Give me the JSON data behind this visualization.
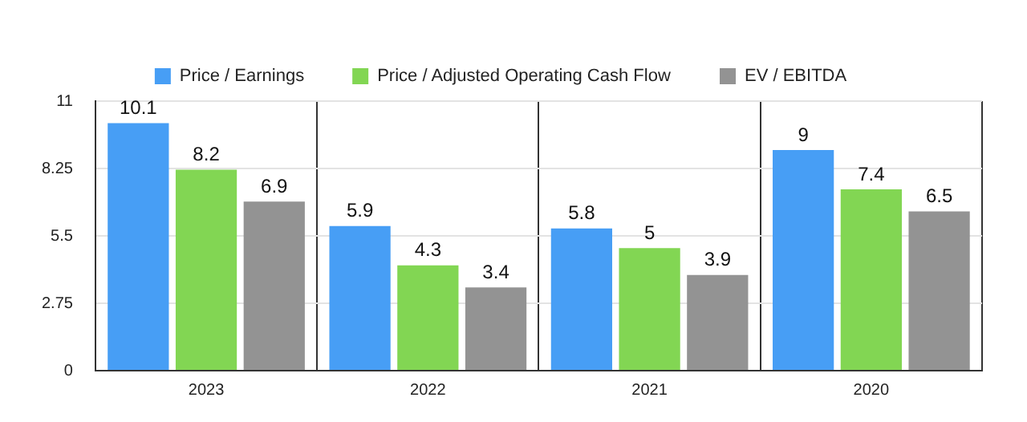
{
  "chart_data": {
    "type": "bar",
    "categories": [
      "2023",
      "2022",
      "2021",
      "2020"
    ],
    "series": [
      {
        "name": "Price / Earnings",
        "color": "#479ef5",
        "values": [
          10.1,
          5.9,
          5.8,
          9
        ]
      },
      {
        "name": "Price / Adjusted Operating Cash Flow",
        "color": "#82d653",
        "values": [
          8.2,
          4.3,
          5,
          7.4
        ]
      },
      {
        "name": "EV / EBITDA",
        "color": "#939393",
        "values": [
          6.9,
          3.4,
          3.9,
          6.5
        ]
      }
    ],
    "ylim": [
      0,
      11
    ],
    "yticks": [
      0,
      2.75,
      5.5,
      8.25,
      11
    ],
    "grid": true,
    "legend": "top",
    "data_labels": true
  }
}
